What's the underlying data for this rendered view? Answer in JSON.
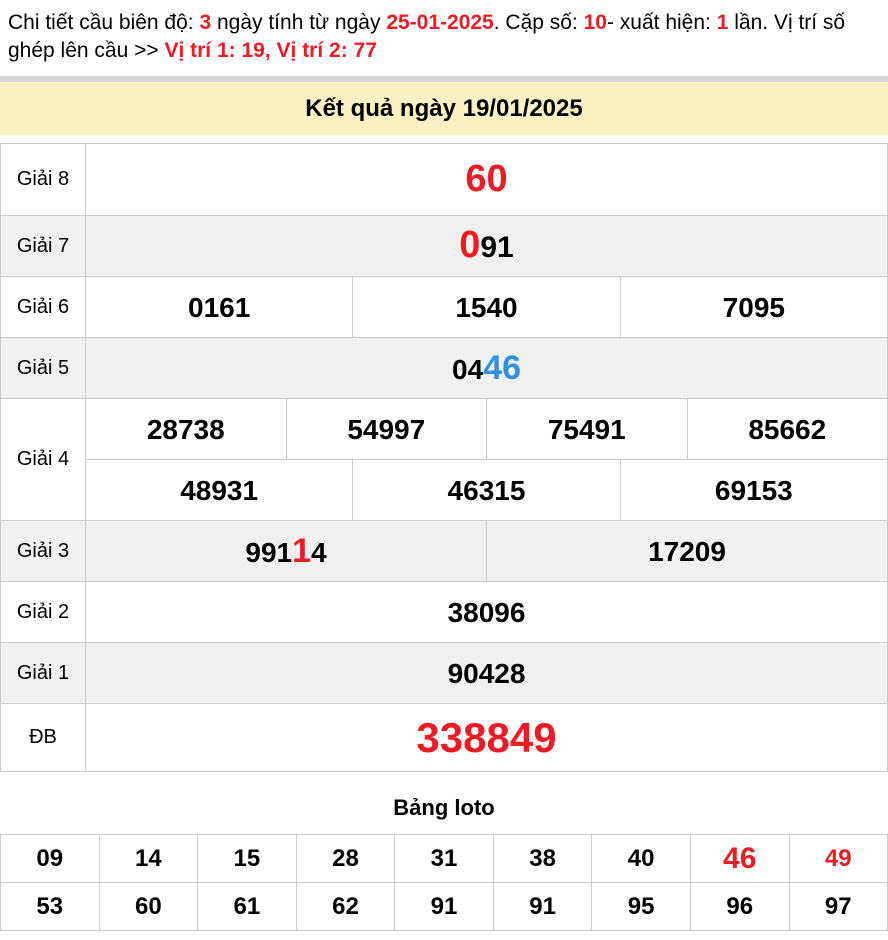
{
  "colors": {
    "accent_red": "#ed1c24",
    "accent_blue": "#2e90e5",
    "banner_bg": "#fdf0c2",
    "row_shade": "#f0f0f0",
    "border": "#cccccc",
    "divider": "#d8d8d8"
  },
  "header": {
    "segments": [
      {
        "text": "Chi tiết cầu biên độ: ",
        "style": "black"
      },
      {
        "text": "3",
        "style": "red"
      },
      {
        "text": " ngày tính từ ngày ",
        "style": "black"
      },
      {
        "text": "25-01-2025",
        "style": "red"
      },
      {
        "text": ". Cặp số: ",
        "style": "black"
      },
      {
        "text": "10",
        "style": "red"
      },
      {
        "text": "- xuất hiện: ",
        "style": "black"
      },
      {
        "text": "1",
        "style": "red"
      },
      {
        "text": " lần. Vị trí số ghép lên cầu >> ",
        "style": "black"
      },
      {
        "text": "Vị trí 1: 19, Vị trí 2: 77",
        "style": "red"
      }
    ]
  },
  "banner": {
    "title": "Kết quả ngày 19/01/2025"
  },
  "results": {
    "rows": [
      {
        "label": "Giải 8",
        "lines": [
          [
            [
              {
                "t": "60",
                "c": "red",
                "s": "xl"
              }
            ]
          ]
        ]
      },
      {
        "label": "Giải 7",
        "lines": [
          [
            [
              {
                "t": "0",
                "c": "red",
                "s": "xl"
              },
              {
                "t": "91",
                "s": "lg"
              }
            ]
          ]
        ]
      },
      {
        "label": "Giải 6",
        "lines": [
          [
            [
              {
                "t": "0161"
              }
            ],
            [
              {
                "t": "1540"
              }
            ],
            [
              {
                "t": "7095"
              }
            ]
          ]
        ]
      },
      {
        "label": "Giải 5",
        "lines": [
          [
            [
              {
                "t": "04"
              },
              {
                "t": "46",
                "c": "blue",
                "s": "md"
              }
            ]
          ]
        ]
      },
      {
        "label": "Giải 4",
        "lines": [
          [
            [
              {
                "t": "28738"
              }
            ],
            [
              {
                "t": "54997"
              }
            ],
            [
              {
                "t": "75491"
              }
            ],
            [
              {
                "t": "85662"
              }
            ]
          ],
          [
            [
              {
                "t": "48931"
              }
            ],
            [
              {
                "t": "46315"
              }
            ],
            [
              {
                "t": "69153"
              }
            ]
          ]
        ]
      },
      {
        "label": "Giải 3",
        "lines": [
          [
            [
              {
                "t": "991"
              },
              {
                "t": "1",
                "c": "red",
                "s": "md"
              },
              {
                "t": "4"
              }
            ],
            [
              {
                "t": "17209"
              }
            ]
          ]
        ]
      },
      {
        "label": "Giải 2",
        "lines": [
          [
            [
              {
                "t": "38096"
              }
            ]
          ]
        ]
      },
      {
        "label": "Giải 1",
        "lines": [
          [
            [
              {
                "t": "90428"
              }
            ]
          ]
        ]
      },
      {
        "label": "ĐB",
        "lines": [
          [
            [
              {
                "t": "338849",
                "c": "red",
                "s": "xxl"
              }
            ]
          ]
        ]
      }
    ]
  },
  "loto": {
    "title": "Bảng loto",
    "rows": [
      [
        {
          "t": "09"
        },
        {
          "t": "14"
        },
        {
          "t": "15"
        },
        {
          "t": "28"
        },
        {
          "t": "31"
        },
        {
          "t": "38"
        },
        {
          "t": "40"
        },
        {
          "t": "46",
          "c": "red",
          "s": "lg"
        },
        {
          "t": "49",
          "c": "red"
        }
      ],
      [
        {
          "t": "53"
        },
        {
          "t": "60"
        },
        {
          "t": "61"
        },
        {
          "t": "62"
        },
        {
          "t": "91"
        },
        {
          "t": "91"
        },
        {
          "t": "95"
        },
        {
          "t": "96"
        },
        {
          "t": "97"
        }
      ]
    ]
  }
}
